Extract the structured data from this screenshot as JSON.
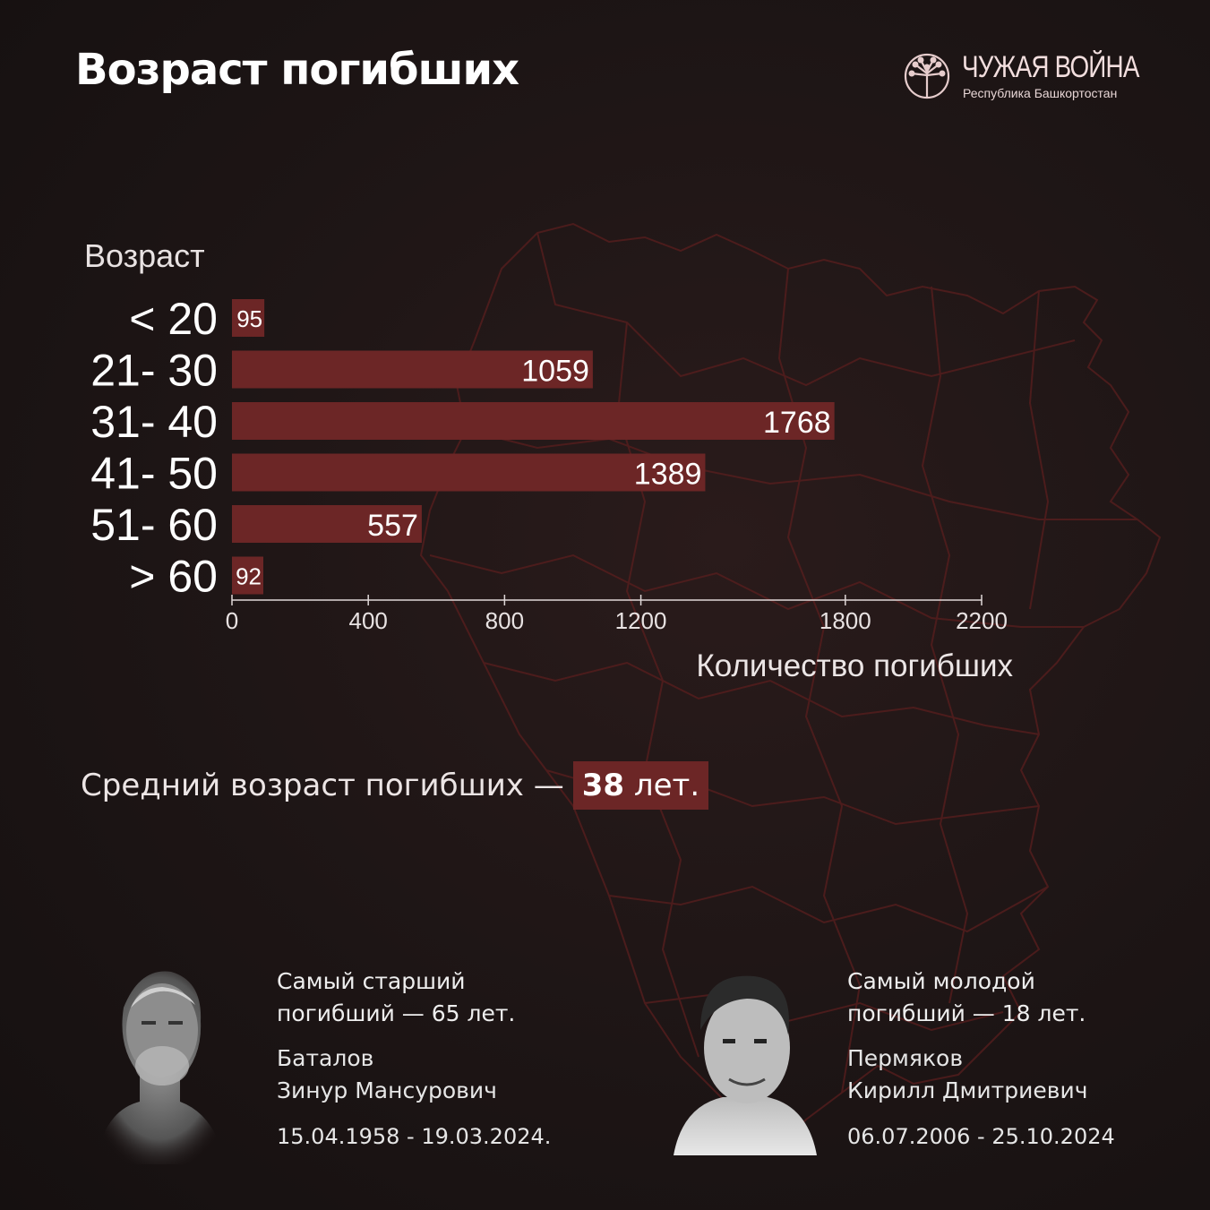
{
  "title": "Возраст погибших",
  "logo": {
    "title": "ЧУЖАЯ ВОЙНА",
    "subtitle": "Республика Башкортостан",
    "icon": "dandelion-icon"
  },
  "chart_data": {
    "type": "bar",
    "orientation": "horizontal",
    "ylabel": "Возраст",
    "xlabel": "Количество погибших",
    "categories": [
      "< 20",
      "21- 30",
      "31- 40",
      "41- 50",
      "51- 60",
      "> 60"
    ],
    "values": [
      95,
      1059,
      1768,
      1389,
      557,
      92
    ],
    "xlim": [
      0,
      2200
    ],
    "xticks": [
      0,
      400,
      800,
      1200,
      1800,
      2200
    ],
    "bar_color": "#6c2626",
    "grid": false,
    "data_labels": true
  },
  "average": {
    "prefix": "Средний возраст погибших —",
    "value": "38",
    "suffix": "лет."
  },
  "oldest": {
    "line1": "Самый старший",
    "line2": "погибший — 65 лет.",
    "surname": "Баталов",
    "given": "Зинур Мансурович",
    "dates": "15.04.1958 - 19.03.2024."
  },
  "youngest": {
    "line1": "Самый молодой",
    "line2": "погибший — 18 лет.",
    "surname": "Пермяков",
    "given": "Кирилл Дмитриевич",
    "dates": "06.07.2006 - 25.10.2024"
  },
  "colors": {
    "background": "#1d1515",
    "accent": "#6c2626",
    "map_outline": "#5a1e1e"
  }
}
